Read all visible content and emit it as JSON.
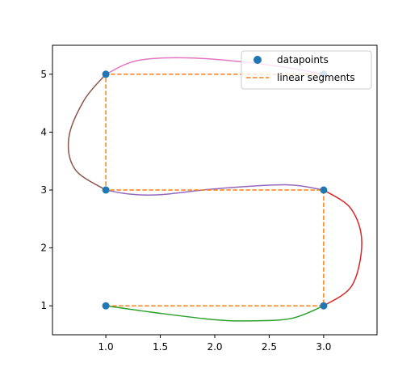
{
  "chart_data": {
    "type": "line",
    "title": "",
    "xlabel": "",
    "ylabel": "",
    "xlim": [
      0.51,
      3.49
    ],
    "ylim": [
      0.5,
      5.5
    ],
    "xticks": [
      1.0,
      1.5,
      2.0,
      2.5,
      3.0
    ],
    "xtick_labels": [
      "1.0",
      "1.5",
      "2.0",
      "2.5",
      "3.0"
    ],
    "yticks": [
      1,
      2,
      3,
      4,
      5
    ],
    "ytick_labels": [
      "1",
      "2",
      "3",
      "4",
      "5"
    ],
    "grid": false,
    "legend_position": "top-right",
    "datapoints": {
      "name": "datapoints",
      "color": "#1f77b4",
      "x": [
        1,
        3,
        3,
        1,
        1,
        3
      ],
      "y": [
        1,
        1,
        3,
        3,
        5,
        5
      ]
    },
    "linear_segments": {
      "name": "linear segments",
      "color": "#ff7f0e",
      "style": "dashed",
      "x": [
        1,
        3,
        3,
        1,
        1,
        3
      ],
      "y": [
        1,
        1,
        3,
        3,
        5,
        5
      ]
    },
    "curves": [
      {
        "color": "#2ca02c",
        "points": [
          [
            1,
            1
          ],
          [
            1.5,
            0.87
          ],
          [
            2.0,
            0.76
          ],
          [
            2.3,
            0.74
          ],
          [
            2.7,
            0.78
          ],
          [
            3,
            1
          ]
        ]
      },
      {
        "color": "#d62728",
        "points": [
          [
            3,
            1
          ],
          [
            3.26,
            1.35
          ],
          [
            3.35,
            2.1
          ],
          [
            3.25,
            2.68
          ],
          [
            3,
            3
          ]
        ]
      },
      {
        "color": "#9467bd",
        "points": [
          [
            3,
            3
          ],
          [
            2.65,
            3.09
          ],
          [
            2.0,
            3.02
          ],
          [
            1.5,
            2.92
          ],
          [
            1.22,
            2.93
          ],
          [
            1,
            3
          ]
        ]
      },
      {
        "color": "#8c564b",
        "points": [
          [
            1,
            3
          ],
          [
            0.72,
            3.35
          ],
          [
            0.66,
            3.9
          ],
          [
            0.8,
            4.55
          ],
          [
            1,
            5
          ]
        ]
      },
      {
        "color": "#e377c2",
        "points": [
          [
            1,
            5
          ],
          [
            1.3,
            5.24
          ],
          [
            1.8,
            5.28
          ],
          [
            2.5,
            5.16
          ],
          [
            3,
            5
          ]
        ]
      }
    ]
  }
}
